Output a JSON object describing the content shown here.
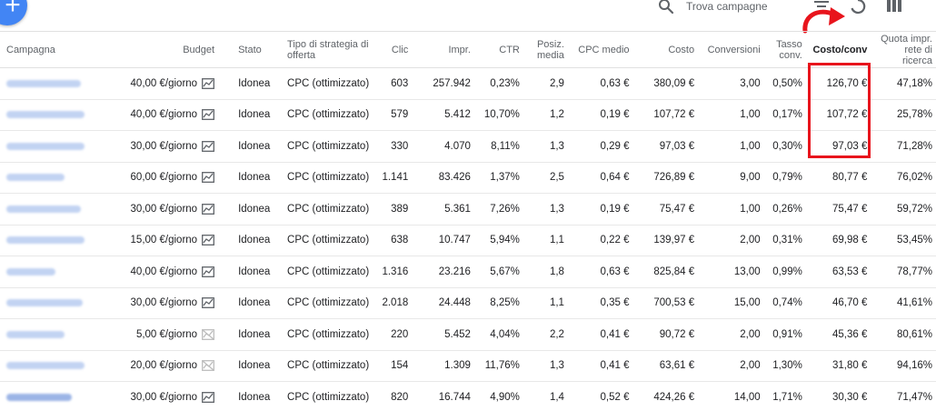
{
  "toolbar": {
    "search_placeholder": "Trova campagne"
  },
  "colors": {
    "accent": "#4285f4",
    "highlight": "#e8141c"
  },
  "columns": [
    "Campagna",
    "Budget",
    "Stato",
    "Tipo di strategia di offerta",
    "Clic",
    "Impr.",
    "CTR",
    "Posiz. media",
    "CPC medio",
    "Costo",
    "Conversioni",
    "Tasso conv.",
    "Costo/conv",
    "Quota impr. rete di ricerca"
  ],
  "rows": [
    {
      "budget": "40,00 €/giorno",
      "trend": "active",
      "stato": "Idonea",
      "strategia": "CPC (ottimizzato)",
      "clic": "603",
      "impr": "257.942",
      "ctr": "0,23%",
      "pos": "2,9",
      "cpc": "0,63 €",
      "costo": "380,09 €",
      "conv": "3,00",
      "tasso": "0,50%",
      "costo_conv": "126,70 €",
      "quota": "47,18%"
    },
    {
      "budget": "40,00 €/giorno",
      "trend": "active",
      "stato": "Idonea",
      "strategia": "CPC (ottimizzato)",
      "clic": "579",
      "impr": "5.412",
      "ctr": "10,70%",
      "pos": "1,2",
      "cpc": "0,19 €",
      "costo": "107,72 €",
      "conv": "1,00",
      "tasso": "0,17%",
      "costo_conv": "107,72 €",
      "quota": "25,78%"
    },
    {
      "budget": "30,00 €/giorno",
      "trend": "active",
      "stato": "Idonea",
      "strategia": "CPC (ottimizzato)",
      "clic": "330",
      "impr": "4.070",
      "ctr": "8,11%",
      "pos": "1,3",
      "cpc": "0,29 €",
      "costo": "97,03 €",
      "conv": "1,00",
      "tasso": "0,30%",
      "costo_conv": "97,03 €",
      "quota": "71,28%"
    },
    {
      "budget": "60,00 €/giorno",
      "trend": "active",
      "stato": "Idonea",
      "strategia": "CPC (ottimizzato)",
      "clic": "1.141",
      "impr": "83.426",
      "ctr": "1,37%",
      "pos": "2,5",
      "cpc": "0,64 €",
      "costo": "726,89 €",
      "conv": "9,00",
      "tasso": "0,79%",
      "costo_conv": "80,77 €",
      "quota": "76,02%"
    },
    {
      "budget": "30,00 €/giorno",
      "trend": "active",
      "stato": "Idonea",
      "strategia": "CPC (ottimizzato)",
      "clic": "389",
      "impr": "5.361",
      "ctr": "7,26%",
      "pos": "1,3",
      "cpc": "0,19 €",
      "costo": "75,47 €",
      "conv": "1,00",
      "tasso": "0,26%",
      "costo_conv": "75,47 €",
      "quota": "59,72%"
    },
    {
      "budget": "15,00 €/giorno",
      "trend": "active",
      "stato": "Idonea",
      "strategia": "CPC (ottimizzato)",
      "clic": "638",
      "impr": "10.747",
      "ctr": "5,94%",
      "pos": "1,1",
      "cpc": "0,22 €",
      "costo": "139,97 €",
      "conv": "2,00",
      "tasso": "0,31%",
      "costo_conv": "69,98 €",
      "quota": "53,45%"
    },
    {
      "budget": "40,00 €/giorno",
      "trend": "active",
      "stato": "Idonea",
      "strategia": "CPC (ottimizzato)",
      "clic": "1.316",
      "impr": "23.216",
      "ctr": "5,67%",
      "pos": "1,8",
      "cpc": "0,63 €",
      "costo": "825,84 €",
      "conv": "13,00",
      "tasso": "0,99%",
      "costo_conv": "63,53 €",
      "quota": "78,77%"
    },
    {
      "budget": "30,00 €/giorno",
      "trend": "active",
      "stato": "Idonea",
      "strategia": "CPC (ottimizzato)",
      "clic": "2.018",
      "impr": "24.448",
      "ctr": "8,25%",
      "pos": "1,1",
      "cpc": "0,35 €",
      "costo": "700,53 €",
      "conv": "15,00",
      "tasso": "0,74%",
      "costo_conv": "46,70 €",
      "quota": "41,61%"
    },
    {
      "budget": "5,00 €/giorno",
      "trend": "disabled",
      "stato": "Idonea",
      "strategia": "CPC (ottimizzato)",
      "clic": "220",
      "impr": "5.452",
      "ctr": "4,04%",
      "pos": "2,2",
      "cpc": "0,41 €",
      "costo": "90,72 €",
      "conv": "2,00",
      "tasso": "0,91%",
      "costo_conv": "45,36 €",
      "quota": "80,61%"
    },
    {
      "budget": "20,00 €/giorno",
      "trend": "disabled",
      "stato": "Idonea",
      "strategia": "CPC (ottimizzato)",
      "clic": "154",
      "impr": "1.309",
      "ctr": "11,76%",
      "pos": "1,3",
      "cpc": "0,41 €",
      "costo": "63,61 €",
      "conv": "2,00",
      "tasso": "1,30%",
      "costo_conv": "31,80 €",
      "quota": "94,16%"
    },
    {
      "budget": "30,00 €/giorno",
      "trend": "active",
      "stato": "Idonea",
      "strategia": "CPC (ottimizzato)",
      "clic": "820",
      "impr": "16.744",
      "ctr": "4,90%",
      "pos": "1,4",
      "cpc": "0,52 €",
      "costo": "424,26 €",
      "conv": "14,00",
      "tasso": "1,71%",
      "costo_conv": "30,30 €",
      "quota": "71,47%"
    }
  ]
}
